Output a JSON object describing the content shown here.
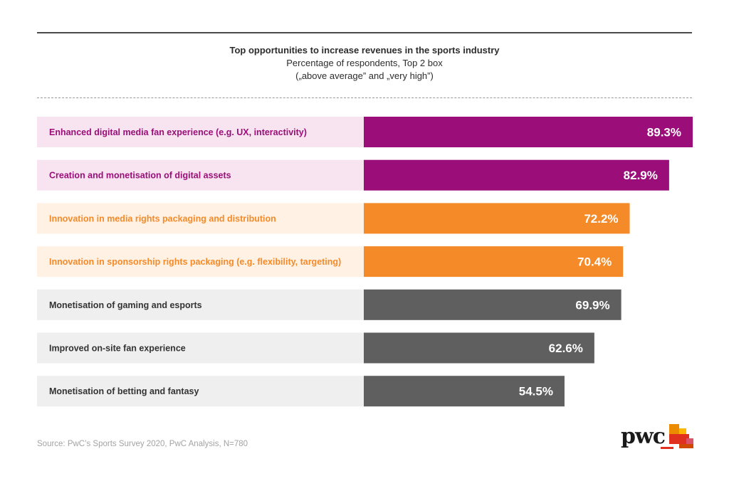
{
  "header": {
    "title": "Top opportunities to increase revenues in the sports industry",
    "subtitle_line1": "Percentage of respondents, Top 2 box",
    "subtitle_line2": "(„above average” and „very high”)"
  },
  "chart_data": {
    "type": "bar",
    "orientation": "horizontal",
    "categories": [
      "Enhanced digital media fan experience (e.g. UX, interactivity)",
      "Creation and monetisation of digital assets",
      "Innovation in media rights packaging and distribution",
      "Innovation in sponsorship rights packaging (e.g. flexibility, targeting)",
      "Monetisation of gaming and esports",
      "Improved on-site fan experience",
      "Monetisation of betting and fantasy"
    ],
    "values": [
      89.3,
      82.9,
      72.2,
      70.4,
      69.9,
      62.6,
      54.5
    ],
    "value_labels": [
      "89.3%",
      "82.9%",
      "72.2%",
      "70.4%",
      "69.9%",
      "62.6%",
      "54.5%"
    ],
    "groups": [
      "digital",
      "digital",
      "rights",
      "rights",
      "other",
      "other",
      "other"
    ],
    "colors": {
      "digital": {
        "bar": "#9b0e79",
        "label_bg": "#f7e4f0",
        "label_text": "#9b0e79"
      },
      "rights": {
        "bar": "#f58a28",
        "label_bg": "#fff1e4",
        "label_text": "#f58a28"
      },
      "other": {
        "bar": "#5f5f5f",
        "label_bg": "#efefef",
        "label_text": "#333333"
      }
    },
    "unit": "%",
    "legend": "none",
    "grid": false
  },
  "footer": {
    "source": "Source: PwC’s Sports Survey 2020, PwC Analysis, N=780",
    "logo_text": "pwc",
    "logo_colors": [
      "#e0301e",
      "#eb8c00",
      "#d04a02",
      "#ffb600",
      "#db536a"
    ]
  }
}
